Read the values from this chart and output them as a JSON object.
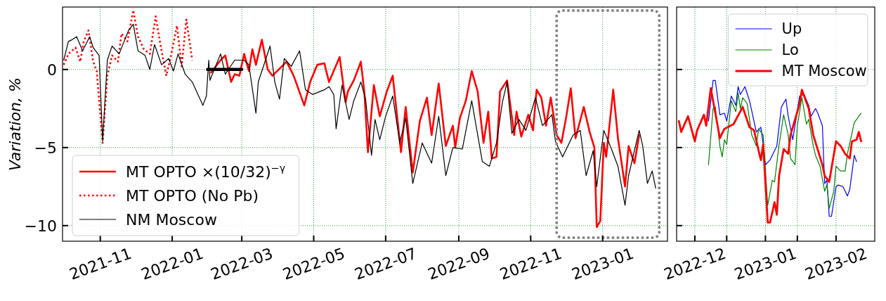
{
  "chart_data": [
    {
      "type": "line",
      "ylabel": "Variation, %",
      "xlim": [
        "2021-09-30",
        "2023-02-25"
      ],
      "xticks": [
        "2021-11",
        "2022-01",
        "2022-03",
        "2022-05",
        "2022-07",
        "2022-09",
        "2022-11",
        "2023-01"
      ],
      "ylim": [
        -11,
        4
      ],
      "yticks": [
        -10,
        -5,
        0
      ],
      "grid": true,
      "legend": "bottom left",
      "series": [
        {
          "name": "MT OPTO ×(10/32)$^{−γ}$",
          "color": "#ff0000",
          "x": [
            "2022-02-03",
            "2022-02-11",
            "2022-02-15",
            "2022-02-20",
            "2022-02-23",
            "2022-02-27",
            "2022-03-03",
            "2022-03-07",
            "2022-03-10",
            "2022-03-13",
            "2022-03-18",
            "2022-03-23",
            "2022-03-27",
            "2022-04-04",
            "2022-04-08",
            "2022-04-14",
            "2022-04-23",
            "2022-04-28",
            "2022-05-04",
            "2022-05-10",
            "2022-05-14",
            "2022-05-23",
            "2022-05-28",
            "2022-05-30",
            "2022-06-04",
            "2022-06-10",
            "2022-06-13",
            "2022-06-16",
            "2022-06-21",
            "2022-06-26",
            "2022-07-02",
            "2022-07-07",
            "2022-07-14",
            "2022-07-18",
            "2022-07-24",
            "2022-07-30",
            "2022-08-05",
            "2022-08-09",
            "2022-08-15",
            "2022-08-21",
            "2022-08-27",
            "2022-08-29",
            "2022-09-02",
            "2022-09-07",
            "2022-09-12",
            "2022-09-17",
            "2022-09-22",
            "2022-09-26",
            "2022-09-29",
            "2022-10-03",
            "2022-10-06",
            "2022-10-12",
            "2022-10-18",
            "2022-10-20",
            "2022-10-24",
            "2022-10-30",
            "2022-11-03",
            "2022-11-06",
            "2022-11-10",
            "2022-11-14",
            "2022-11-18",
            "2022-11-23",
            "2022-11-27",
            "2022-12-01",
            "2022-12-05",
            "2022-12-09",
            "2022-12-16",
            "2022-12-21",
            "2022-12-25",
            "2022-12-27",
            "2022-12-30",
            "2023-01-02",
            "2023-01-04",
            "2023-01-10",
            "2023-01-14",
            "2023-01-20",
            "2023-01-23",
            "2023-01-28",
            "2023-02-01"
          ],
          "values": [
            -0.2,
            0.6,
            0.9,
            -0.8,
            -0.3,
            -0.4,
            1.0,
            -0.1,
            1.3,
            0.3,
            1.9,
            0.0,
            -0.4,
            0.2,
            0.5,
            -0.4,
            -2.3,
            -0.8,
            0.3,
            0.4,
            -0.8,
            0.8,
            -2.1,
            -1.4,
            -0.7,
            0.5,
            -1.5,
            -5.3,
            -1.0,
            -3.0,
            -1.4,
            -0.4,
            -5.3,
            -2.4,
            -6.6,
            -3.3,
            -1.8,
            -4.2,
            -0.9,
            -4.9,
            -3.6,
            -5.0,
            -3.1,
            -2.0,
            -0.1,
            -1.4,
            -4.7,
            -2.7,
            -5.7,
            -5.6,
            -1.4,
            -0.7,
            -4.2,
            -2.7,
            -4.3,
            -2.9,
            -3.9,
            -1.3,
            -1.8,
            -3.6,
            -1.8,
            -4.2,
            -4.7,
            -3.1,
            -1.2,
            -4.4,
            -2.4,
            -4.0,
            -5.0,
            -10.1,
            -9.7,
            -4.7,
            -5.6,
            -1.3,
            -4.4,
            -7.5,
            -4.9,
            -6.0,
            -4.2
          ]
        },
        {
          "name": "MT OPTO (No Pb)",
          "color": "#ff0000",
          "line_style": "dotted",
          "x": [
            "2021-10-01",
            "2021-10-05",
            "2021-10-11",
            "2021-10-15",
            "2021-10-18",
            "2021-10-22",
            "2021-10-26",
            "2021-10-29",
            "2021-11-03",
            "2021-11-07",
            "2021-11-11",
            "2021-11-16",
            "2021-11-19",
            "2021-11-24",
            "2021-11-29",
            "2021-12-03",
            "2021-12-08",
            "2021-12-13",
            "2021-12-18",
            "2021-12-22",
            "2021-12-27",
            "2021-12-31",
            "2022-01-05",
            "2022-01-09",
            "2022-01-13",
            "2022-01-18"
          ],
          "values": [
            0.3,
            1.0,
            1.4,
            0.5,
            1.8,
            2.5,
            0.5,
            -0.1,
            -4.7,
            -0.4,
            0.9,
            0.5,
            2.3,
            1.8,
            3.8,
            2.1,
            1.3,
            1.0,
            3.4,
            1.6,
            -0.4,
            0.9,
            2.8,
            0.2,
            3.2,
            0.6
          ]
        },
        {
          "name": "NM Moscow",
          "color": "#000000",
          "x": [
            "2021-10-01",
            "2021-10-05",
            "2021-10-08",
            "2021-10-12",
            "2021-10-17",
            "2021-10-23",
            "2021-10-26",
            "2021-10-31",
            "2021-11-03",
            "2021-11-07",
            "2021-11-11",
            "2021-11-17",
            "2021-11-25",
            "2021-11-29",
            "2021-12-03",
            "2021-12-09",
            "2021-12-13",
            "2021-12-17",
            "2021-12-23",
            "2021-12-29",
            "2022-01-02",
            "2022-01-06",
            "2022-01-12",
            "2022-01-18",
            "2022-01-27",
            "2022-01-30",
            "2022-02-01",
            "2022-02-02",
            "2022-02-11",
            "2022-02-15",
            "2022-02-23",
            "2022-03-03",
            "2022-03-07",
            "2022-03-13",
            "2022-03-15",
            "2022-03-25",
            "2022-03-29",
            "2022-04-02",
            "2022-04-06",
            "2022-04-12",
            "2022-04-19",
            "2022-04-24",
            "2022-04-30",
            "2022-05-10",
            "2022-05-14",
            "2022-05-18",
            "2022-05-20",
            "2022-05-25",
            "2022-05-28",
            "2022-05-31",
            "2022-06-04",
            "2022-06-10",
            "2022-06-14",
            "2022-06-19",
            "2022-06-22",
            "2022-06-26",
            "2022-07-01",
            "2022-07-07",
            "2022-07-13",
            "2022-07-18",
            "2022-07-24",
            "2022-08-01",
            "2022-08-09",
            "2022-08-15",
            "2022-08-21",
            "2022-08-27",
            "2022-09-04",
            "2022-09-12",
            "2022-09-21",
            "2022-09-27",
            "2022-10-03",
            "2022-10-08",
            "2022-10-12",
            "2022-10-16",
            "2022-10-22",
            "2022-10-28",
            "2022-11-05",
            "2022-11-11",
            "2022-11-19",
            "2022-11-22",
            "2022-11-28",
            "2022-12-07",
            "2022-12-13",
            "2022-12-18",
            "2022-12-24",
            "2022-12-27",
            "2023-01-02",
            "2023-01-08",
            "2023-01-14",
            "2023-01-20",
            "2023-01-23",
            "2023-02-01",
            "2023-02-04",
            "2023-02-08",
            "2023-02-12",
            "2023-02-15"
          ],
          "values": [
            0.6,
            1.8,
            1.9,
            2.1,
            1.2,
            2.1,
            1.4,
            0.9,
            -4.6,
            0.6,
            1.5,
            1.0,
            2.5,
            2.9,
            1.2,
            0.9,
            0.0,
            1.6,
            0.3,
            0.7,
            -0.1,
            1.0,
            -0.3,
            -0.8,
            -2.3,
            -1.7,
            0.6,
            -0.7,
            1.0,
            -0.3,
            0.6,
            0.6,
            0.3,
            -2.8,
            -0.8,
            1.5,
            -0.8,
            -1.9,
            0.7,
            0.2,
            1.2,
            -1.3,
            -1.6,
            -1.3,
            -1.1,
            -1.6,
            -3.8,
            -1.0,
            -2.1,
            -3.2,
            -2.0,
            -0.8,
            -1.9,
            -5.5,
            -3.2,
            -4.5,
            -3.0,
            -1.7,
            -4.7,
            -3.1,
            -7.3,
            -4.7,
            -6.0,
            -3.0,
            -6.8,
            -5.0,
            -5.1,
            -2.0,
            -5.9,
            -6.2,
            -4.7,
            -2.1,
            -0.8,
            -4.1,
            -3.2,
            -3.9,
            -1.8,
            -3.6,
            -2.9,
            -4.6,
            -5.6,
            -4.2,
            -3.9,
            -6.8,
            -5.2,
            -7.5,
            -3.9,
            -5.0,
            -6.2,
            -8.7,
            -6.8,
            -3.9,
            -4.9,
            -7.3,
            -6.5,
            -7.6
          ]
        },
        {
          "color": "#000000",
          "x": [
            "2022-01-31",
            "2022-03-01"
          ],
          "values": [
            0,
            0
          ]
        }
      ]
    },
    {
      "type": "line",
      "xlim": [
        "2022-11-23",
        "2023-02-18"
      ],
      "xticks": [
        "2022-12",
        {
          "value": "2022-12-15",
          "label": null
        },
        "2023-01",
        {
          "value": "2023-01-15",
          "label": null
        },
        "2023-02"
      ],
      "ylim": [
        -11,
        4
      ],
      "yticks": [
        {
          "value": -10,
          "label": null
        },
        {
          "value": -5,
          "label": null
        },
        {
          "value": 0,
          "label": null
        }
      ],
      "tick_labels": "x",
      "grid": true,
      "legend": "top right",
      "series": [
        {
          "name": "Up",
          "color": "#0000ff",
          "x": [
            "2022-12-07",
            "2022-12-09",
            "2022-12-10",
            "2022-12-12",
            "2022-12-14",
            "2022-12-15",
            "2022-12-17",
            "2022-12-19",
            "2022-12-20",
            "2022-12-21",
            "2022-12-23",
            "2022-12-25",
            "2022-12-28",
            "2022-12-30",
            "2022-12-31",
            "2023-01-01",
            "2023-01-03",
            "2023-01-06",
            "2023-01-08",
            "2023-01-10",
            "2023-01-11",
            "2023-01-13",
            "2023-01-16",
            "2023-01-18",
            "2023-01-20",
            "2023-01-21",
            "2023-01-23",
            "2023-01-24",
            "2023-01-26",
            "2023-01-27",
            "2023-01-28",
            "2023-01-29",
            "2023-01-30",
            "2023-02-01",
            "2023-02-02",
            "2023-02-04",
            "2023-02-06",
            "2023-02-07",
            "2023-02-09",
            "2023-02-10"
          ],
          "values": [
            -3.3,
            -0.7,
            -0.7,
            -2.9,
            -2.8,
            -3.3,
            -1.7,
            -2.3,
            -1.1,
            -1.6,
            -1.1,
            -2.0,
            -4.0,
            -3.7,
            -4.8,
            -6.1,
            -5.8,
            -4.9,
            -2.4,
            -1.9,
            -3.0,
            -4.5,
            -1.7,
            -1.6,
            -2.3,
            -3.0,
            -2.5,
            -2.8,
            -3.6,
            -7.3,
            -7.1,
            -9.4,
            -9.4,
            -7.5,
            -7.4,
            -7.5,
            -8.1,
            -7.7,
            -5.5,
            -5.9
          ]
        },
        {
          "name": "Lo",
          "color": "#008000",
          "x": [
            "2022-12-07",
            "2022-12-09",
            "2022-12-10",
            "2022-12-12",
            "2022-12-13",
            "2022-12-14",
            "2022-12-15",
            "2022-12-17",
            "2022-12-19",
            "2022-12-20",
            "2022-12-21",
            "2022-12-22",
            "2022-12-24",
            "2022-12-26",
            "2022-12-28",
            "2022-12-29",
            "2022-12-31",
            "2023-01-02",
            "2023-01-04",
            "2023-01-05",
            "2023-01-07",
            "2023-01-09",
            "2023-01-11",
            "2023-01-12",
            "2023-01-14",
            "2023-01-15",
            "2023-01-17",
            "2023-01-19",
            "2023-01-20",
            "2023-01-22",
            "2023-01-23",
            "2023-01-25",
            "2023-01-27",
            "2023-01-28",
            "2023-01-29",
            "2023-01-31",
            "2023-02-01",
            "2023-02-03",
            "2023-02-05",
            "2023-02-06",
            "2023-02-09",
            "2023-02-12"
          ],
          "values": [
            -6.1,
            -2.5,
            -2.4,
            -4.9,
            -5.6,
            -4.5,
            -4.8,
            -2.0,
            -2.7,
            -1.5,
            -2.5,
            -1.8,
            -2.2,
            -4.2,
            -4.9,
            -3.8,
            -4.2,
            -8.7,
            -7.1,
            -7.2,
            -4.8,
            -2.9,
            -4.2,
            -5.7,
            -6.1,
            -3.6,
            -1.8,
            -3.5,
            -3.2,
            -4.9,
            -5.5,
            -6.2,
            -7.8,
            -7.4,
            -8.9,
            -7.8,
            -6.2,
            -6.5,
            -6.5,
            -5.4,
            -3.4,
            -2.8
          ]
        },
        {
          "name": "MT Moscow",
          "color": "#ff0000",
          "x": [
            "2022-11-24",
            "2022-11-25",
            "2022-11-28",
            "2022-12-01",
            "2022-12-02",
            "2022-12-05",
            "2022-12-06",
            "2022-12-08",
            "2022-12-12",
            "2022-12-14",
            "2022-12-18",
            "2022-12-22",
            "2022-12-25",
            "2022-12-27",
            "2022-12-29",
            "2022-12-30",
            "2022-12-31",
            "2023-01-02",
            "2023-01-03",
            "2023-01-05",
            "2023-01-06",
            "2023-01-07",
            "2023-01-09",
            "2023-01-11",
            "2023-01-12",
            "2023-01-16",
            "2023-01-17",
            "2023-01-20",
            "2023-01-22",
            "2023-01-26",
            "2023-01-27",
            "2023-01-29",
            "2023-02-01",
            "2023-02-03",
            "2023-02-05",
            "2023-02-07",
            "2023-02-08",
            "2023-02-10",
            "2023-02-11",
            "2023-02-12"
          ],
          "values": [
            -3.3,
            -4.0,
            -3.0,
            -4.6,
            -3.9,
            -2.9,
            -3.6,
            -1.2,
            -4.4,
            -3.8,
            -3.5,
            -2.4,
            -3.7,
            -3.9,
            -5.2,
            -5.8,
            -4.8,
            -9.8,
            -9.8,
            -8.5,
            -9.3,
            -6.8,
            -5.1,
            -5.4,
            -4.2,
            -2.2,
            -1.3,
            -2.5,
            -4.2,
            -6.1,
            -6.8,
            -7.2,
            -4.6,
            -4.9,
            -5.4,
            -5.7,
            -4.6,
            -4.5,
            -4.0,
            -4.6
          ]
        }
      ]
    }
  ]
}
